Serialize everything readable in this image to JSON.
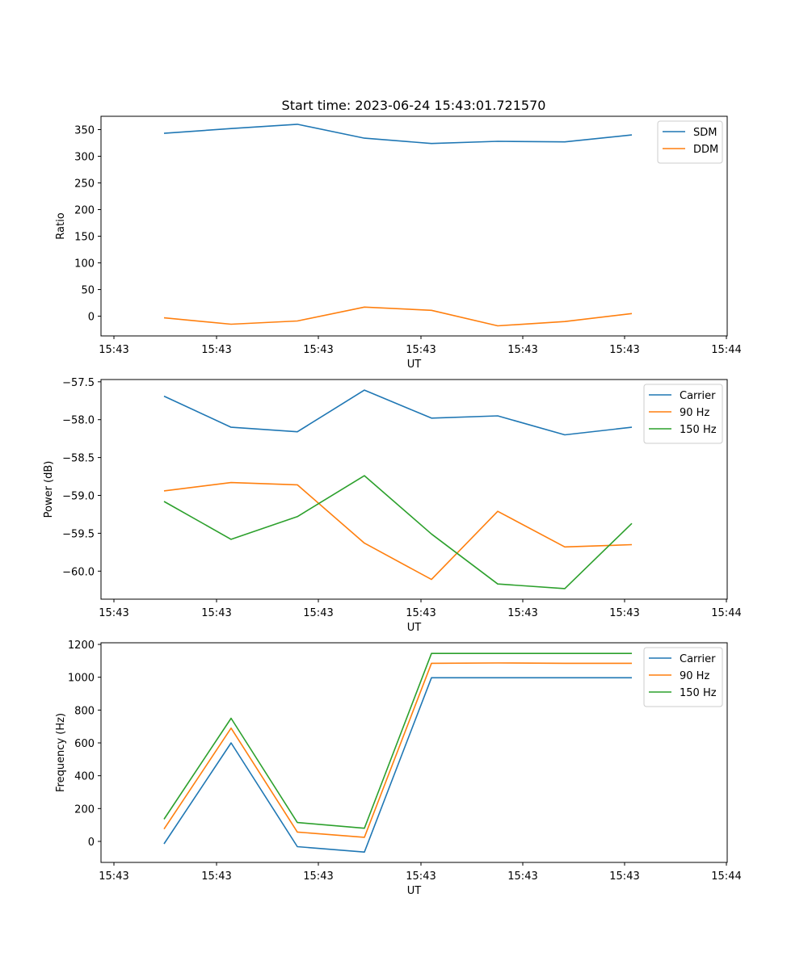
{
  "figure": {
    "title": "Start time: 2023-06-24 15:43:01.721570"
  },
  "chart_data": [
    {
      "type": "line",
      "xlabel": "UT",
      "ylabel": "Ratio",
      "x_tick_labels": [
        "15:43",
        "15:43",
        "15:43",
        "15:43",
        "15:43",
        "15:43",
        "15:44"
      ],
      "yticks": [
        0,
        50,
        100,
        150,
        200,
        250,
        300,
        350
      ],
      "ytick_labels": [
        "0",
        "50",
        "100",
        "150",
        "200",
        "250",
        "300",
        "350"
      ],
      "ylim": [
        -37,
        375
      ],
      "grid": false,
      "legend": "top-right",
      "series": [
        {
          "name": "SDM",
          "color": "#1f77b4",
          "values": [
            343,
            352,
            360,
            334,
            324,
            328,
            327,
            340
          ]
        },
        {
          "name": "DDM",
          "color": "#ff7f0e",
          "values": [
            -3,
            -15,
            -9,
            17,
            11,
            -18,
            -10,
            5
          ]
        }
      ]
    },
    {
      "type": "line",
      "xlabel": "UT",
      "ylabel": "Power (dB)",
      "x_tick_labels": [
        "15:43",
        "15:43",
        "15:43",
        "15:43",
        "15:43",
        "15:43",
        "15:44"
      ],
      "yticks": [
        -60.0,
        -59.5,
        -59.0,
        -58.5,
        -58.0,
        -57.5
      ],
      "ytick_labels": [
        "−60.0",
        "−59.5",
        "−59.0",
        "−58.5",
        "−58.0",
        "−57.5"
      ],
      "ylim": [
        -60.37,
        -57.47
      ],
      "grid": false,
      "legend": "top-right",
      "series": [
        {
          "name": "Carrier",
          "color": "#1f77b4",
          "values": [
            -57.69,
            -58.1,
            -58.16,
            -57.61,
            -57.98,
            -57.95,
            -58.2,
            -58.1
          ]
        },
        {
          "name": "90 Hz",
          "color": "#ff7f0e",
          "values": [
            -58.94,
            -58.83,
            -58.86,
            -59.63,
            -60.11,
            -59.21,
            -59.68,
            -59.65
          ]
        },
        {
          "name": "150 Hz",
          "color": "#2ca02c",
          "values": [
            -59.08,
            -59.58,
            -59.28,
            -58.74,
            -59.51,
            -60.17,
            -60.23,
            -59.37
          ]
        }
      ]
    },
    {
      "type": "line",
      "xlabel": "UT",
      "ylabel": "Frequency (Hz)",
      "x_tick_labels": [
        "15:43",
        "15:43",
        "15:43",
        "15:43",
        "15:43",
        "15:43",
        "15:44"
      ],
      "yticks": [
        0,
        200,
        400,
        600,
        800,
        1000,
        1200
      ],
      "ytick_labels": [
        "0",
        "200",
        "400",
        "600",
        "800",
        "1000",
        "1200"
      ],
      "ylim": [
        -128,
        1210
      ],
      "grid": false,
      "legend": "top-right",
      "series": [
        {
          "name": "Carrier",
          "color": "#1f77b4",
          "values": [
            -15,
            600,
            -32,
            -65,
            997,
            997,
            997,
            997
          ]
        },
        {
          "name": "90 Hz",
          "color": "#ff7f0e",
          "values": [
            75,
            690,
            57,
            25,
            1085,
            1087,
            1085,
            1085
          ]
        },
        {
          "name": "150 Hz",
          "color": "#2ca02c",
          "values": [
            135,
            750,
            115,
            80,
            1145,
            1145,
            1145,
            1145
          ]
        }
      ]
    }
  ]
}
